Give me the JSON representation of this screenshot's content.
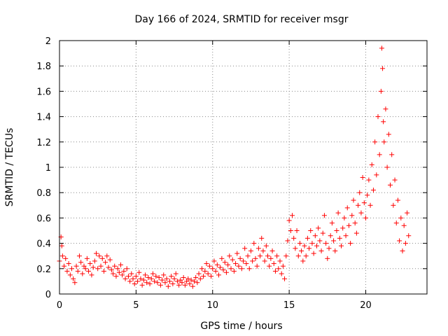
{
  "chart_data": {
    "type": "scatter",
    "title": "Day 166 of 2024, SRMTID for receiver msgr",
    "xlabel": "GPS time / hours",
    "ylabel": "SRMTID / TECUs",
    "xlim": [
      0,
      24
    ],
    "ylim": [
      0,
      2
    ],
    "xticks": [
      0,
      5,
      10,
      15,
      20
    ],
    "yticks": [
      0,
      0.2,
      0.4,
      0.6,
      0.8,
      1,
      1.2,
      1.4,
      1.6,
      1.8,
      2
    ],
    "grid": true,
    "marker": "+",
    "color": "#ff0000",
    "series": [
      {
        "name": "SRMTID",
        "points": [
          [
            0.0,
            0.26
          ],
          [
            0.1,
            0.45
          ],
          [
            0.15,
            0.38
          ],
          [
            0.2,
            0.3
          ],
          [
            0.3,
            0.22
          ],
          [
            0.4,
            0.28
          ],
          [
            0.5,
            0.18
          ],
          [
            0.6,
            0.24
          ],
          [
            0.7,
            0.15
          ],
          [
            0.8,
            0.2
          ],
          [
            0.9,
            0.12
          ],
          [
            1.0,
            0.09
          ],
          [
            1.1,
            0.22
          ],
          [
            1.2,
            0.18
          ],
          [
            1.3,
            0.3
          ],
          [
            1.4,
            0.25
          ],
          [
            1.5,
            0.16
          ],
          [
            1.6,
            0.22
          ],
          [
            1.7,
            0.2
          ],
          [
            1.8,
            0.28
          ],
          [
            1.9,
            0.18
          ],
          [
            2.0,
            0.24
          ],
          [
            2.1,
            0.15
          ],
          [
            2.2,
            0.21
          ],
          [
            2.3,
            0.26
          ],
          [
            2.4,
            0.32
          ],
          [
            2.5,
            0.2
          ],
          [
            2.6,
            0.3
          ],
          [
            2.7,
            0.22
          ],
          [
            2.8,
            0.28
          ],
          [
            2.9,
            0.18
          ],
          [
            3.0,
            0.25
          ],
          [
            3.1,
            0.3
          ],
          [
            3.2,
            0.21
          ],
          [
            3.3,
            0.27
          ],
          [
            3.4,
            0.19
          ],
          [
            3.5,
            0.16
          ],
          [
            3.6,
            0.22
          ],
          [
            3.7,
            0.14
          ],
          [
            3.8,
            0.2
          ],
          [
            3.9,
            0.17
          ],
          [
            4.0,
            0.23
          ],
          [
            4.1,
            0.15
          ],
          [
            4.2,
            0.18
          ],
          [
            4.3,
            0.12
          ],
          [
            4.4,
            0.2
          ],
          [
            4.5,
            0.14
          ],
          [
            4.6,
            0.1
          ],
          [
            4.7,
            0.16
          ],
          [
            4.8,
            0.12
          ],
          [
            4.9,
            0.08
          ],
          [
            5.0,
            0.14
          ],
          [
            5.1,
            0.1
          ],
          [
            5.2,
            0.17
          ],
          [
            5.3,
            0.12
          ],
          [
            5.4,
            0.07
          ],
          [
            5.5,
            0.11
          ],
          [
            5.6,
            0.15
          ],
          [
            5.7,
            0.09
          ],
          [
            5.8,
            0.13
          ],
          [
            5.9,
            0.08
          ],
          [
            6.0,
            0.12
          ],
          [
            6.1,
            0.16
          ],
          [
            6.2,
            0.1
          ],
          [
            6.3,
            0.14
          ],
          [
            6.4,
            0.09
          ],
          [
            6.5,
            0.13
          ],
          [
            6.6,
            0.07
          ],
          [
            6.7,
            0.11
          ],
          [
            6.8,
            0.15
          ],
          [
            6.9,
            0.09
          ],
          [
            7.0,
            0.12
          ],
          [
            7.1,
            0.06
          ],
          [
            7.2,
            0.1
          ],
          [
            7.3,
            0.14
          ],
          [
            7.4,
            0.08
          ],
          [
            7.5,
            0.12
          ],
          [
            7.6,
            0.16
          ],
          [
            7.7,
            0.1
          ],
          [
            7.8,
            0.07
          ],
          [
            7.9,
            0.11
          ],
          [
            8.0,
            0.09
          ],
          [
            8.1,
            0.13
          ],
          [
            8.2,
            0.07
          ],
          [
            8.3,
            0.1
          ],
          [
            8.4,
            0.12
          ],
          [
            8.5,
            0.08
          ],
          [
            8.6,
            0.11
          ],
          [
            8.7,
            0.06
          ],
          [
            8.8,
            0.1
          ],
          [
            8.9,
            0.13
          ],
          [
            9.0,
            0.09
          ],
          [
            9.1,
            0.16
          ],
          [
            9.2,
            0.12
          ],
          [
            9.3,
            0.2
          ],
          [
            9.4,
            0.14
          ],
          [
            9.5,
            0.18
          ],
          [
            9.6,
            0.24
          ],
          [
            9.7,
            0.16
          ],
          [
            9.8,
            0.22
          ],
          [
            9.9,
            0.14
          ],
          [
            10.0,
            0.2
          ],
          [
            10.1,
            0.26
          ],
          [
            10.2,
            0.18
          ],
          [
            10.3,
            0.23
          ],
          [
            10.4,
            0.15
          ],
          [
            10.5,
            0.21
          ],
          [
            10.6,
            0.28
          ],
          [
            10.7,
            0.19
          ],
          [
            10.8,
            0.25
          ],
          [
            10.9,
            0.17
          ],
          [
            11.0,
            0.23
          ],
          [
            11.1,
            0.3
          ],
          [
            11.2,
            0.2
          ],
          [
            11.3,
            0.27
          ],
          [
            11.4,
            0.18
          ],
          [
            11.5,
            0.24
          ],
          [
            11.6,
            0.32
          ],
          [
            11.7,
            0.22
          ],
          [
            11.8,
            0.28
          ],
          [
            11.9,
            0.2
          ],
          [
            12.0,
            0.26
          ],
          [
            12.1,
            0.36
          ],
          [
            12.2,
            0.24
          ],
          [
            12.3,
            0.3
          ],
          [
            12.4,
            0.2
          ],
          [
            12.5,
            0.34
          ],
          [
            12.6,
            0.26
          ],
          [
            12.7,
            0.4
          ],
          [
            12.8,
            0.28
          ],
          [
            12.9,
            0.22
          ],
          [
            13.0,
            0.36
          ],
          [
            13.1,
            0.3
          ],
          [
            13.2,
            0.44
          ],
          [
            13.3,
            0.34
          ],
          [
            13.4,
            0.26
          ],
          [
            13.5,
            0.38
          ],
          [
            13.6,
            0.3
          ],
          [
            13.7,
            0.22
          ],
          [
            13.8,
            0.28
          ],
          [
            13.9,
            0.34
          ],
          [
            14.0,
            0.24
          ],
          [
            14.1,
            0.18
          ],
          [
            14.2,
            0.3
          ],
          [
            14.3,
            0.2
          ],
          [
            14.4,
            0.26
          ],
          [
            14.5,
            0.16
          ],
          [
            14.6,
            0.22
          ],
          [
            14.7,
            0.12
          ],
          [
            14.8,
            0.3
          ],
          [
            14.9,
            0.42
          ],
          [
            15.0,
            0.58
          ],
          [
            15.1,
            0.5
          ],
          [
            15.2,
            0.62
          ],
          [
            15.3,
            0.44
          ],
          [
            15.4,
            0.36
          ],
          [
            15.5,
            0.5
          ],
          [
            15.6,
            0.3
          ],
          [
            15.7,
            0.4
          ],
          [
            15.8,
            0.34
          ],
          [
            15.9,
            0.26
          ],
          [
            16.0,
            0.38
          ],
          [
            16.1,
            0.3
          ],
          [
            16.2,
            0.44
          ],
          [
            16.3,
            0.36
          ],
          [
            16.4,
            0.5
          ],
          [
            16.5,
            0.4
          ],
          [
            16.6,
            0.32
          ],
          [
            16.7,
            0.46
          ],
          [
            16.8,
            0.38
          ],
          [
            16.9,
            0.52
          ],
          [
            17.0,
            0.42
          ],
          [
            17.1,
            0.34
          ],
          [
            17.2,
            0.48
          ],
          [
            17.3,
            0.62
          ],
          [
            17.4,
            0.4
          ],
          [
            17.5,
            0.28
          ],
          [
            17.6,
            0.36
          ],
          [
            17.7,
            0.46
          ],
          [
            17.8,
            0.56
          ],
          [
            17.9,
            0.42
          ],
          [
            18.0,
            0.34
          ],
          [
            18.1,
            0.5
          ],
          [
            18.2,
            0.64
          ],
          [
            18.3,
            0.44
          ],
          [
            18.4,
            0.38
          ],
          [
            18.5,
            0.52
          ],
          [
            18.6,
            0.6
          ],
          [
            18.7,
            0.46
          ],
          [
            18.8,
            0.68
          ],
          [
            18.9,
            0.54
          ],
          [
            19.0,
            0.4
          ],
          [
            19.1,
            0.62
          ],
          [
            19.2,
            0.74
          ],
          [
            19.3,
            0.56
          ],
          [
            19.4,
            0.48
          ],
          [
            19.5,
            0.7
          ],
          [
            19.6,
            0.8
          ],
          [
            19.7,
            0.64
          ],
          [
            19.8,
            0.92
          ],
          [
            19.9,
            0.72
          ],
          [
            20.0,
            0.6
          ],
          [
            20.1,
            0.78
          ],
          [
            20.2,
            0.9
          ],
          [
            20.3,
            0.7
          ],
          [
            20.4,
            1.02
          ],
          [
            20.5,
            0.82
          ],
          [
            20.6,
            1.2
          ],
          [
            20.7,
            0.94
          ],
          [
            20.8,
            1.4
          ],
          [
            20.9,
            1.1
          ],
          [
            21.0,
            1.6
          ],
          [
            21.05,
            1.94
          ],
          [
            21.1,
            1.78
          ],
          [
            21.15,
            1.36
          ],
          [
            21.2,
            1.2
          ],
          [
            21.3,
            1.46
          ],
          [
            21.4,
            1.0
          ],
          [
            21.5,
            1.26
          ],
          [
            21.6,
            0.86
          ],
          [
            21.7,
            1.1
          ],
          [
            21.8,
            0.7
          ],
          [
            21.9,
            0.9
          ],
          [
            22.0,
            0.56
          ],
          [
            22.1,
            0.74
          ],
          [
            22.2,
            0.42
          ],
          [
            22.3,
            0.6
          ],
          [
            22.4,
            0.34
          ],
          [
            22.5,
            0.54
          ],
          [
            22.6,
            0.4
          ],
          [
            22.7,
            0.64
          ],
          [
            22.8,
            0.46
          ]
        ]
      }
    ]
  }
}
